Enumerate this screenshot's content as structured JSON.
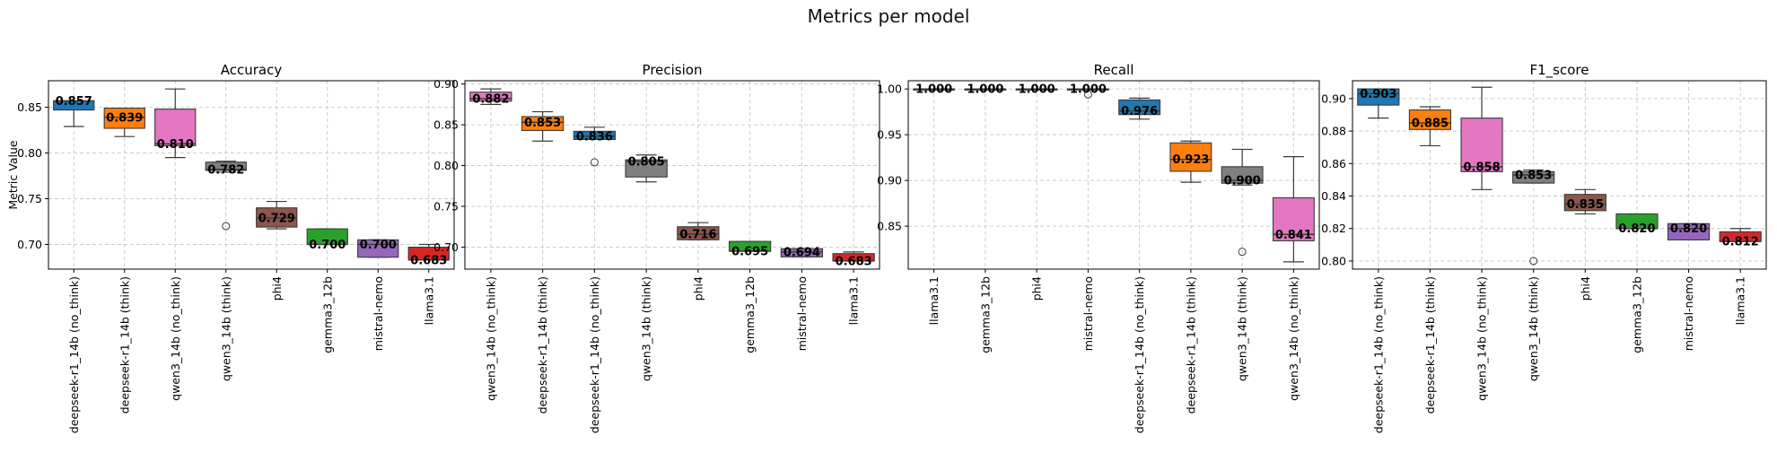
{
  "title": "Metrics per model",
  "chart_data": [
    {
      "type": "box",
      "title": "Accuracy",
      "ylabel": "Metric Value",
      "ylim": [
        0.673,
        0.879
      ],
      "yticks": [
        0.7,
        0.75,
        0.8,
        0.85
      ],
      "grid": true,
      "categories": [
        "deepseek-r1_14b (no_think)",
        "deepseek-r1_14b (think)",
        "qwen3_14b (no_think)",
        "qwen3_14b (think)",
        "phi4",
        "gemma3_12b",
        "mistral-nemo",
        "llama3.1"
      ],
      "colors": [
        "#1f77b4",
        "#ff7f0e",
        "#e377c2",
        "#7f7f7f",
        "#8c564b",
        "#2ca02c",
        "#9467bd",
        "#d62728"
      ],
      "boxes": [
        {
          "whislo": 0.829,
          "q1": 0.847,
          "med": 0.857,
          "q3": 0.857,
          "whishi": 0.857,
          "fliers": []
        },
        {
          "whislo": 0.818,
          "q1": 0.827,
          "med": 0.839,
          "q3": 0.849,
          "whishi": 0.849,
          "fliers": []
        },
        {
          "whislo": 0.795,
          "q1": 0.808,
          "med": 0.81,
          "q3": 0.848,
          "whishi": 0.87,
          "fliers": []
        },
        {
          "whislo": 0.779,
          "q1": 0.781,
          "med": 0.782,
          "q3": 0.79,
          "whishi": 0.791,
          "fliers": [
            0.72
          ]
        },
        {
          "whislo": 0.717,
          "q1": 0.719,
          "med": 0.729,
          "q3": 0.74,
          "whishi": 0.747,
          "fliers": []
        },
        {
          "whislo": 0.7,
          "q1": 0.7,
          "med": 0.7,
          "q3": 0.717,
          "whishi": 0.717,
          "fliers": []
        },
        {
          "whislo": 0.686,
          "q1": 0.686,
          "med": 0.7,
          "q3": 0.705,
          "whishi": 0.705,
          "fliers": []
        },
        {
          "whislo": 0.683,
          "q1": 0.683,
          "med": 0.683,
          "q3": 0.697,
          "whishi": 0.7,
          "fliers": []
        }
      ],
      "median_labels": [
        "0.857",
        "0.839",
        "0.810",
        "0.782",
        "0.729",
        "0.700",
        "0.700",
        "0.683"
      ]
    },
    {
      "type": "box",
      "title": "Precision",
      "ylabel": "",
      "ylim": [
        0.673,
        0.904
      ],
      "yticks": [
        0.7,
        0.75,
        0.8,
        0.85,
        0.9
      ],
      "grid": true,
      "categories": [
        "qwen3_14b (no_think)",
        "deepseek-r1_14b (think)",
        "deepseek-r1_14b (no_think)",
        "qwen3_14b (think)",
        "phi4",
        "gemma3_12b",
        "mistral-nemo",
        "llama3.1"
      ],
      "colors": [
        "#e377c2",
        "#ff7f0e",
        "#1f77b4",
        "#7f7f7f",
        "#8c564b",
        "#2ca02c",
        "#9467bd",
        "#d62728"
      ],
      "boxes": [
        {
          "whislo": 0.875,
          "q1": 0.879,
          "med": 0.882,
          "q3": 0.89,
          "whishi": 0.894,
          "fliers": []
        },
        {
          "whislo": 0.83,
          "q1": 0.843,
          "med": 0.853,
          "q3": 0.86,
          "whishi": 0.866,
          "fliers": []
        },
        {
          "whislo": 0.832,
          "q1": 0.832,
          "med": 0.836,
          "q3": 0.842,
          "whishi": 0.847,
          "fliers": [
            0.804
          ]
        },
        {
          "whislo": 0.78,
          "q1": 0.786,
          "med": 0.805,
          "q3": 0.807,
          "whishi": 0.813,
          "fliers": []
        },
        {
          "whislo": 0.709,
          "q1": 0.709,
          "med": 0.716,
          "q3": 0.725,
          "whishi": 0.73,
          "fliers": []
        },
        {
          "whislo": 0.695,
          "q1": 0.695,
          "med": 0.695,
          "q3": 0.707,
          "whishi": 0.707,
          "fliers": []
        },
        {
          "whislo": 0.688,
          "q1": 0.688,
          "med": 0.694,
          "q3": 0.698,
          "whishi": 0.698,
          "fliers": []
        },
        {
          "whislo": 0.683,
          "q1": 0.683,
          "med": 0.683,
          "q3": 0.692,
          "whishi": 0.694,
          "fliers": []
        }
      ],
      "median_labels": [
        "0.882",
        "0.853",
        "0.836",
        "0.805",
        "0.716",
        "0.695",
        "0.694",
        "0.683"
      ]
    },
    {
      "type": "box",
      "title": "Recall",
      "ylabel": "",
      "ylim": [
        0.803,
        1.009
      ],
      "yticks": [
        0.85,
        0.9,
        0.95,
        1.0
      ],
      "grid": true,
      "categories": [
        "llama3.1",
        "gemma3_12b",
        "phi4",
        "mistral-nemo",
        "deepseek-r1_14b (no_think)",
        "deepseek-r1_14b (think)",
        "qwen3_14b (think)",
        "qwen3_14b (no_think)"
      ],
      "colors": [
        "#d62728",
        "#2ca02c",
        "#8c564b",
        "#9467bd",
        "#1f77b4",
        "#ff7f0e",
        "#7f7f7f",
        "#e377c2"
      ],
      "boxes": [
        {
          "whislo": 1.0,
          "q1": 1.0,
          "med": 1.0,
          "q3": 1.0,
          "whishi": 1.0,
          "fliers": []
        },
        {
          "whislo": 1.0,
          "q1": 1.0,
          "med": 1.0,
          "q3": 1.0,
          "whishi": 1.0,
          "fliers": []
        },
        {
          "whislo": 1.0,
          "q1": 1.0,
          "med": 1.0,
          "q3": 1.0,
          "whishi": 1.0,
          "fliers": []
        },
        {
          "whislo": 1.0,
          "q1": 1.0,
          "med": 1.0,
          "q3": 1.0,
          "whishi": 1.0,
          "fliers": [
            0.994
          ]
        },
        {
          "whislo": 0.967,
          "q1": 0.972,
          "med": 0.976,
          "q3": 0.988,
          "whishi": 0.99,
          "fliers": []
        },
        {
          "whislo": 0.898,
          "q1": 0.91,
          "med": 0.923,
          "q3": 0.941,
          "whishi": 0.943,
          "fliers": []
        },
        {
          "whislo": 0.895,
          "q1": 0.897,
          "med": 0.9,
          "q3": 0.915,
          "whishi": 0.934,
          "fliers": [
            0.822
          ]
        },
        {
          "whislo": 0.811,
          "q1": 0.834,
          "med": 0.841,
          "q3": 0.881,
          "whishi": 0.926,
          "fliers": []
        }
      ],
      "median_labels": [
        "1.000",
        "1.000",
        "1.000",
        "1.000",
        "0.976",
        "0.923",
        "0.900",
        "0.841"
      ]
    },
    {
      "type": "box",
      "title": "F1_score",
      "ylabel": "",
      "ylim": [
        0.795,
        0.911
      ],
      "yticks": [
        0.8,
        0.82,
        0.84,
        0.86,
        0.88,
        0.9
      ],
      "grid": true,
      "categories": [
        "deepseek-r1_14b (no_think)",
        "deepseek-r1_14b (think)",
        "qwen3_14b (no_think)",
        "qwen3_14b (think)",
        "phi4",
        "gemma3_12b",
        "mistral-nemo",
        "llama3.1"
      ],
      "colors": [
        "#1f77b4",
        "#ff7f0e",
        "#e377c2",
        "#7f7f7f",
        "#8c564b",
        "#2ca02c",
        "#9467bd",
        "#d62728"
      ],
      "boxes": [
        {
          "whislo": 0.888,
          "q1": 0.896,
          "med": 0.903,
          "q3": 0.906,
          "whishi": 0.906,
          "fliers": []
        },
        {
          "whislo": 0.871,
          "q1": 0.881,
          "med": 0.885,
          "q3": 0.893,
          "whishi": 0.895,
          "fliers": []
        },
        {
          "whislo": 0.844,
          "q1": 0.855,
          "med": 0.858,
          "q3": 0.888,
          "whishi": 0.907,
          "fliers": []
        },
        {
          "whislo": 0.848,
          "q1": 0.848,
          "med": 0.853,
          "q3": 0.855,
          "whishi": 0.856,
          "fliers": [
            0.8
          ]
        },
        {
          "whislo": 0.829,
          "q1": 0.831,
          "med": 0.835,
          "q3": 0.841,
          "whishi": 0.844,
          "fliers": []
        },
        {
          "whislo": 0.82,
          "q1": 0.82,
          "med": 0.82,
          "q3": 0.829,
          "whishi": 0.829,
          "fliers": []
        },
        {
          "whislo": 0.813,
          "q1": 0.813,
          "med": 0.82,
          "q3": 0.823,
          "whishi": 0.823,
          "fliers": []
        },
        {
          "whislo": 0.812,
          "q1": 0.812,
          "med": 0.812,
          "q3": 0.818,
          "whishi": 0.82,
          "fliers": []
        }
      ],
      "median_labels": [
        "0.903",
        "0.885",
        "0.858",
        "0.853",
        "0.835",
        "0.820",
        "0.820",
        "0.812"
      ]
    }
  ]
}
